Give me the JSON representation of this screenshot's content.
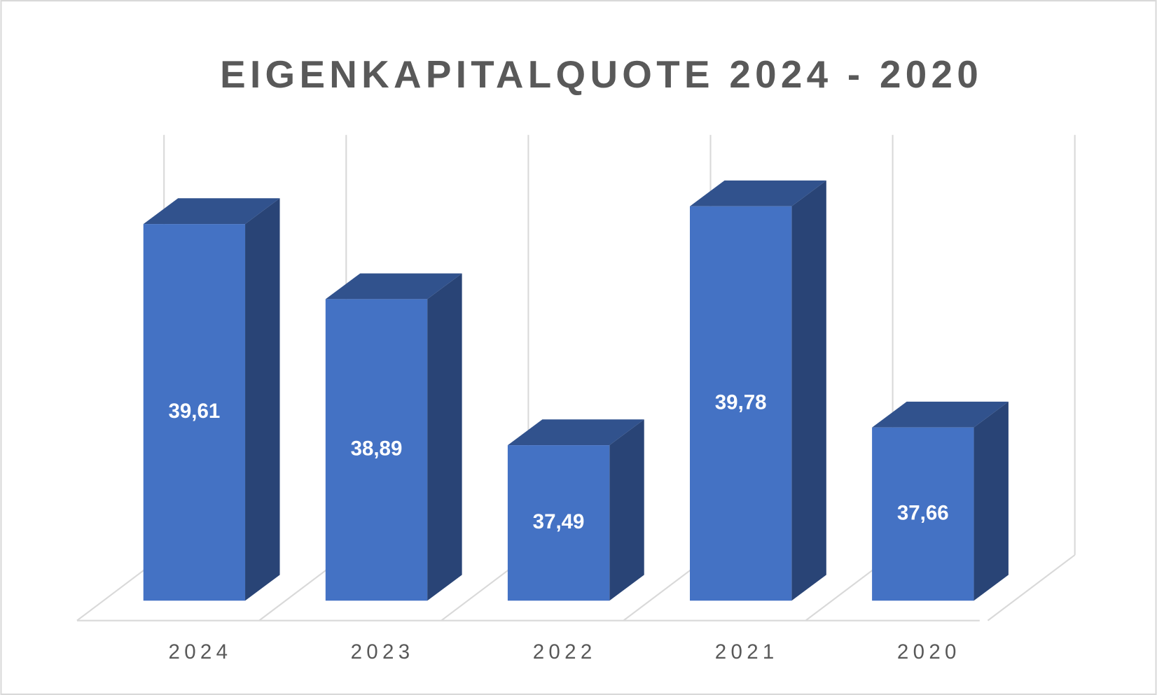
{
  "chart_data": {
    "type": "bar3d",
    "title": "EIGENKAPITALQUOTE 2024 - 2020",
    "categories": [
      "2024",
      "2023",
      "2022",
      "2021",
      "2020"
    ],
    "values": [
      39.61,
      38.89,
      37.49,
      39.78,
      37.66
    ],
    "value_labels": [
      "39,61",
      "38,89",
      "37,49",
      "39,78",
      "37,66"
    ],
    "color": "#4472c4",
    "ylim": [
      36,
      40.5
    ],
    "grid": true
  }
}
